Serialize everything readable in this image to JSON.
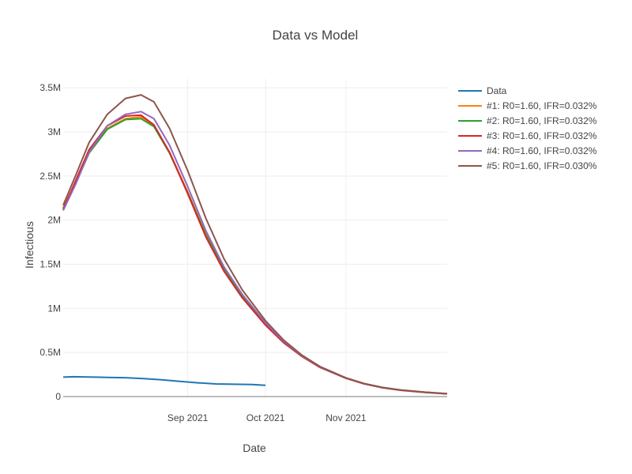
{
  "chart_data": {
    "type": "line",
    "title": "Data vs Model",
    "xlabel": "Date",
    "ylabel": "Infectious",
    "x_range": [
      "2021-07-15",
      "2021-12-10"
    ],
    "ylim": [
      0,
      3600000
    ],
    "x_ticks": [
      {
        "date": "2021-09-01",
        "label": "Sep 2021"
      },
      {
        "date": "2021-10-01",
        "label": "Oct 2021"
      },
      {
        "date": "2021-11-01",
        "label": "Nov 2021"
      }
    ],
    "y_ticks": [
      {
        "value": 0,
        "label": "0"
      },
      {
        "value": 500000,
        "label": "0.5M"
      },
      {
        "value": 1000000,
        "label": "1M"
      },
      {
        "value": 1500000,
        "label": "1.5M"
      },
      {
        "value": 2000000,
        "label": "2M"
      },
      {
        "value": 2500000,
        "label": "2.5M"
      },
      {
        "value": 3000000,
        "label": "3M"
      },
      {
        "value": 3500000,
        "label": "3.5M"
      }
    ],
    "grid": true,
    "legend_position": "top-right",
    "series": [
      {
        "name": "Data",
        "color": "#1f77b4",
        "x": [
          "2021-07-15",
          "2021-07-19",
          "2021-07-25",
          "2021-08-01",
          "2021-08-08",
          "2021-08-15",
          "2021-08-22",
          "2021-08-29",
          "2021-09-05",
          "2021-09-12",
          "2021-09-19",
          "2021-09-26",
          "2021-10-01"
        ],
        "y": [
          220000,
          225000,
          222000,
          218000,
          214000,
          203000,
          190000,
          172000,
          156000,
          143000,
          140000,
          137000,
          128000
        ]
      },
      {
        "name": "#1: R0=1.60, IFR=0.032%",
        "color": "#ff7f0e",
        "x": [
          "2021-07-15",
          "2021-07-20",
          "2021-07-25",
          "2021-08-01",
          "2021-08-08",
          "2021-08-14",
          "2021-08-19",
          "2021-08-25",
          "2021-09-01",
          "2021-09-08",
          "2021-09-15",
          "2021-09-22",
          "2021-10-01",
          "2021-10-08",
          "2021-10-15",
          "2021-10-22",
          "2021-11-01",
          "2021-11-08",
          "2021-11-15",
          "2021-11-22",
          "2021-12-01",
          "2021-12-10"
        ],
        "y": [
          2140000,
          2440000,
          2770000,
          3040000,
          3150000,
          3170000,
          3070000,
          2770000,
          2320000,
          1840000,
          1460000,
          1150000,
          825000,
          620000,
          460000,
          335000,
          210000,
          146000,
          102000,
          74000,
          50000,
          32000
        ]
      },
      {
        "name": "#2: R0=1.60, IFR=0.032%",
        "color": "#2ca02c",
        "x": [
          "2021-07-15",
          "2021-07-20",
          "2021-07-25",
          "2021-08-01",
          "2021-08-08",
          "2021-08-14",
          "2021-08-19",
          "2021-08-25",
          "2021-09-01",
          "2021-09-08",
          "2021-09-15",
          "2021-09-22",
          "2021-10-01",
          "2021-10-08",
          "2021-10-15",
          "2021-10-22",
          "2021-11-01",
          "2021-11-08",
          "2021-11-15",
          "2021-11-22",
          "2021-12-01",
          "2021-12-10"
        ],
        "y": [
          2130000,
          2430000,
          2760000,
          3030000,
          3140000,
          3150000,
          3060000,
          2760000,
          2310000,
          1830000,
          1450000,
          1140000,
          820000,
          615000,
          458000,
          333000,
          209000,
          145000,
          101000,
          73000,
          49000,
          31000
        ]
      },
      {
        "name": "#3: R0=1.60, IFR=0.032%",
        "color": "#d62728",
        "x": [
          "2021-07-15",
          "2021-07-20",
          "2021-07-25",
          "2021-08-01",
          "2021-08-08",
          "2021-08-14",
          "2021-08-19",
          "2021-08-25",
          "2021-09-01",
          "2021-09-08",
          "2021-09-15",
          "2021-09-22",
          "2021-10-01",
          "2021-10-08",
          "2021-10-15",
          "2021-10-22",
          "2021-11-01",
          "2021-11-08",
          "2021-11-15",
          "2021-11-22",
          "2021-12-01",
          "2021-12-10"
        ],
        "y": [
          2120000,
          2460000,
          2800000,
          3070000,
          3180000,
          3190000,
          3080000,
          2770000,
          2300000,
          1810000,
          1420000,
          1120000,
          810000,
          610000,
          455000,
          330000,
          208000,
          144000,
          100000,
          72000,
          48000,
          30000
        ]
      },
      {
        "name": "#4: R0=1.60, IFR=0.032%",
        "color": "#9467bd",
        "x": [
          "2021-07-15",
          "2021-07-20",
          "2021-07-25",
          "2021-08-01",
          "2021-08-08",
          "2021-08-14",
          "2021-08-19",
          "2021-08-25",
          "2021-09-01",
          "2021-09-08",
          "2021-09-15",
          "2021-09-22",
          "2021-10-01",
          "2021-10-08",
          "2021-10-15",
          "2021-10-22",
          "2021-11-01",
          "2021-11-08",
          "2021-11-15",
          "2021-11-22",
          "2021-12-01",
          "2021-12-10"
        ],
        "y": [
          2110000,
          2420000,
          2770000,
          3070000,
          3200000,
          3230000,
          3150000,
          2850000,
          2380000,
          1880000,
          1470000,
          1160000,
          835000,
          625000,
          463000,
          337000,
          211000,
          147000,
          103000,
          74000,
          50000,
          32000
        ]
      },
      {
        "name": "#5: R0=1.60, IFR=0.030%",
        "color": "#8c564b",
        "x": [
          "2021-07-15",
          "2021-07-20",
          "2021-07-25",
          "2021-08-01",
          "2021-08-08",
          "2021-08-14",
          "2021-08-19",
          "2021-08-25",
          "2021-09-01",
          "2021-09-08",
          "2021-09-15",
          "2021-09-22",
          "2021-10-01",
          "2021-10-08",
          "2021-10-15",
          "2021-10-22",
          "2021-11-01",
          "2021-11-08",
          "2021-11-15",
          "2021-11-22",
          "2021-12-01",
          "2021-12-10"
        ],
        "y": [
          2170000,
          2520000,
          2880000,
          3200000,
          3380000,
          3420000,
          3340000,
          3040000,
          2560000,
          2020000,
          1560000,
          1210000,
          860000,
          640000,
          470000,
          340000,
          212000,
          148000,
          104000,
          75000,
          51000,
          32000
        ]
      }
    ]
  }
}
